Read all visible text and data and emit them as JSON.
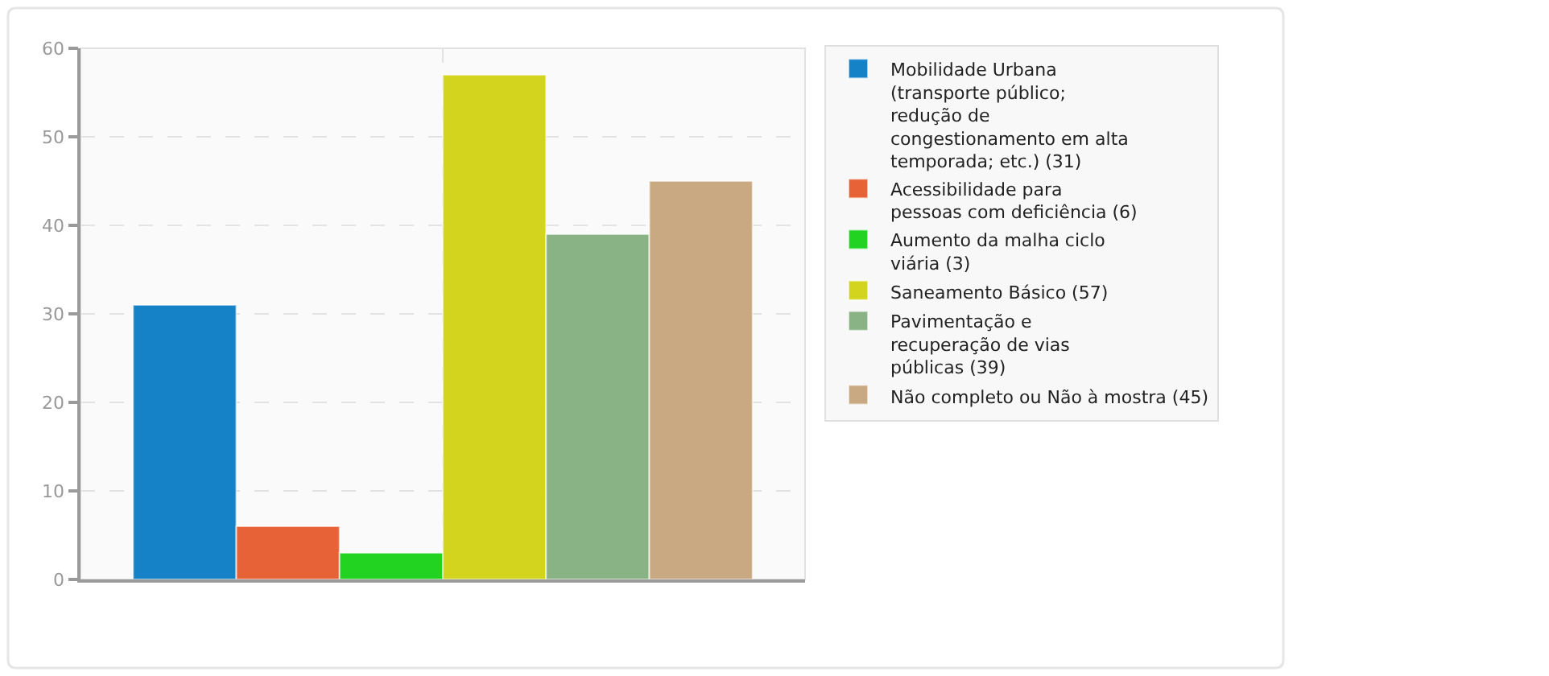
{
  "chart_data": {
    "type": "bar",
    "categories": [
      null
    ],
    "series": [
      {
        "name": "Mobilidade Urbana\n(transporte público;\nredução de\ncongestionamento em alta\ntemporada; etc.) (31)",
        "color": "#1582c8",
        "values": [
          31
        ]
      },
      {
        "name": "Acessibilidade para\npessoas com deficiência (6)",
        "color": "#e86238",
        "values": [
          6
        ]
      },
      {
        "name": "Aumento da malha ciclo\nviária (3)",
        "color": "#22d322",
        "values": [
          3
        ]
      },
      {
        "name": "Saneamento Básico (57)",
        "color": "#d3d41e",
        "values": [
          57
        ]
      },
      {
        "name": "Pavimentação e\nrecuperação de vias\npúblicas (39)",
        "color": "#89b384",
        "values": [
          39
        ]
      },
      {
        "name": "Não completo ou Não à mostra (45)",
        "color": "#c8a982",
        "values": [
          45
        ]
      }
    ],
    "ylim": [
      0,
      60
    ],
    "yticks": [
      0,
      10,
      20,
      30,
      40,
      50,
      60
    ],
    "grid": true,
    "legend": "right"
  }
}
